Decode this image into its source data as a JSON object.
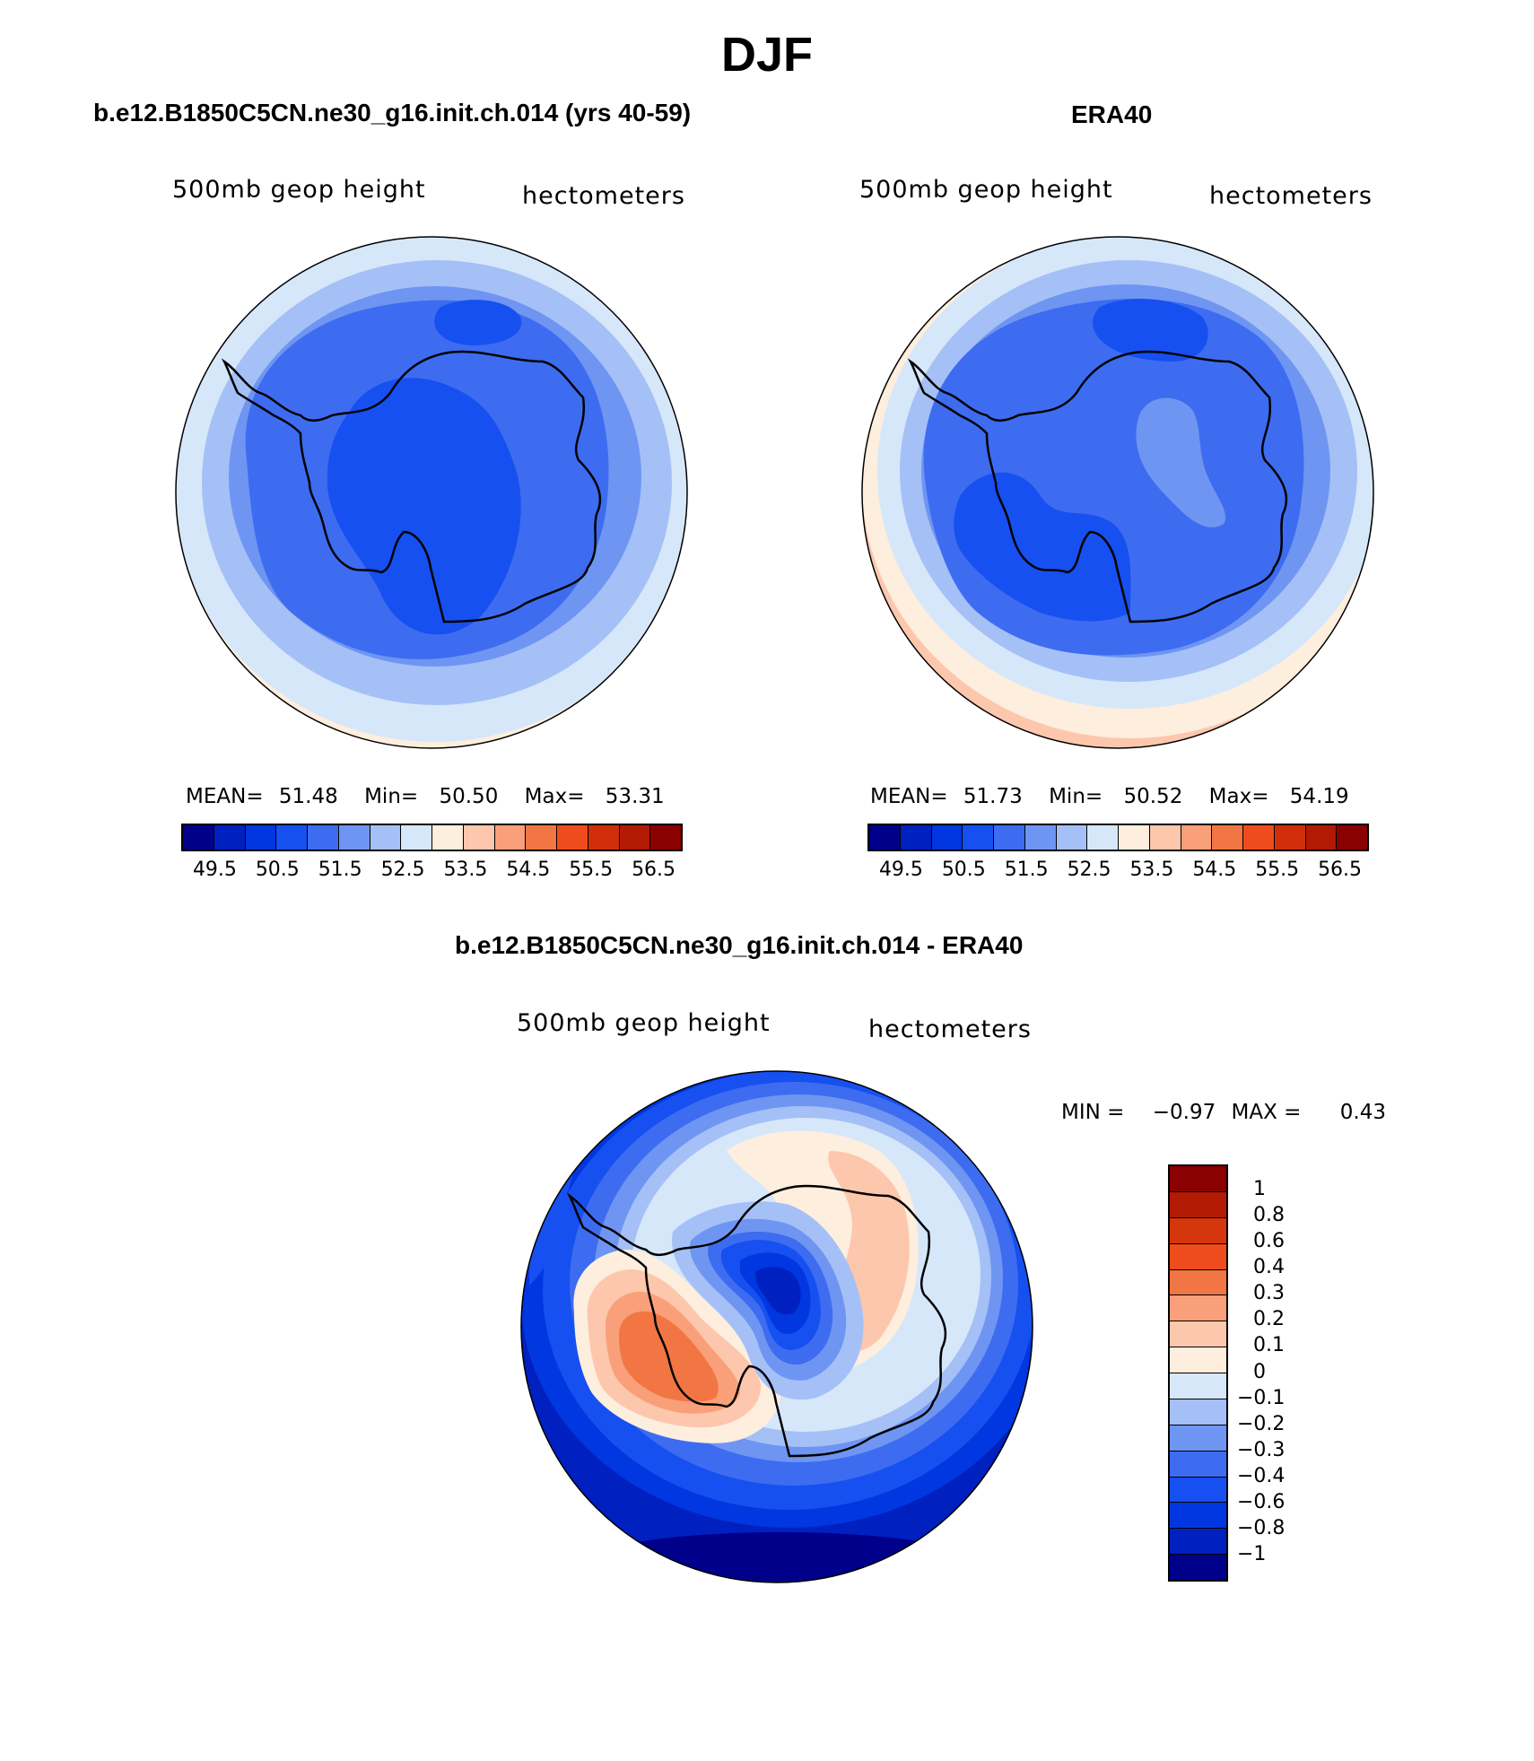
{
  "title": "DJF",
  "colors": {
    "abs_scale": [
      "#00008b",
      "#0020c0",
      "#0037e0",
      "#1750f0",
      "#3d6cf0",
      "#6f95f2",
      "#a4c0f6",
      "#d6e7fa",
      "#fdeede",
      "#fcc7ad",
      "#f9a07a",
      "#f27643",
      "#ef4c1d",
      "#d02e0a",
      "#b21a04",
      "#8b0000"
    ],
    "diff_scale": [
      "#8b0000",
      "#b21a04",
      "#d6360c",
      "#ef4c1d",
      "#f27643",
      "#f9a07a",
      "#fcc7ad",
      "#fdeede",
      "#d6e7fa",
      "#a4c0f6",
      "#6f95f2",
      "#3d6cf0",
      "#1750f0",
      "#0037e0",
      "#0020c0",
      "#00008b"
    ]
  },
  "panels": {
    "model": {
      "title": "b.e12.B1850C5CN.ne30_g16.init.ch.014 (yrs 40-59)",
      "variable": "500mb geop height",
      "units": "hectometers",
      "mean_label": "MEAN=",
      "mean": "51.48",
      "min_label": "Min=",
      "min": "50.50",
      "max_label": "Max=",
      "max": "53.31"
    },
    "obs": {
      "title": "ERA40",
      "variable": "500mb geop height",
      "units": "hectometers",
      "mean_label": "MEAN=",
      "mean": "51.73",
      "min_label": "Min=",
      "min": "50.52",
      "max_label": "Max=",
      "max": "54.19"
    },
    "diff": {
      "title": "b.e12.B1850C5CN.ne30_g16.init.ch.014 - ERA40",
      "variable": "500mb geop height",
      "units": "hectometers",
      "min_label": "MIN =",
      "min": "−0.97",
      "max_label": "MAX =",
      "max": "0.43"
    }
  },
  "abs_colorbar_ticks": [
    "49.5",
    "50.5",
    "51.5",
    "52.5",
    "53.5",
    "54.5",
    "55.5",
    "56.5"
  ],
  "diff_colorbar_labels": [
    "1",
    "0.8",
    "0.6",
    "0.4",
    "0.3",
    "0.2",
    "0.1",
    "0",
    "−0.1",
    "−0.2",
    "−0.3",
    "−0.4",
    "−0.6",
    "−0.8",
    "−1"
  ]
}
